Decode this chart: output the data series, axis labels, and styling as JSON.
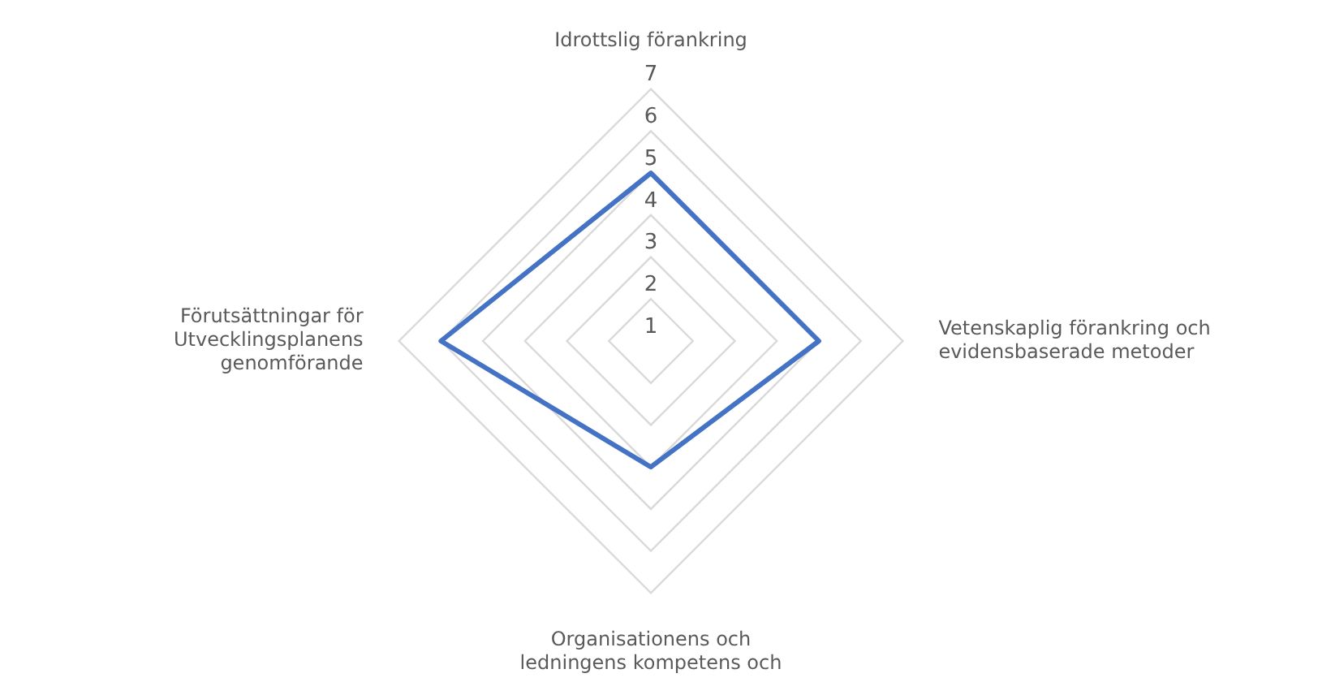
{
  "chart_data": {
    "type": "radar",
    "categories": [
      "Idrottslig förankring",
      "Vetenskaplig förankring och\nevidensbaserade metoder",
      "Organisationens och\nledningens kompetens och",
      "Förutsättningar för\nUtvecklingsplanens\ngenomförande"
    ],
    "series": [
      {
        "color": "#4472c4",
        "values": [
          5,
          5,
          4,
          6
        ]
      }
    ],
    "ylim": [
      1,
      7
    ],
    "yticks": [
      1,
      2,
      3,
      4,
      5,
      6,
      7
    ],
    "grid": true,
    "legend": false
  }
}
